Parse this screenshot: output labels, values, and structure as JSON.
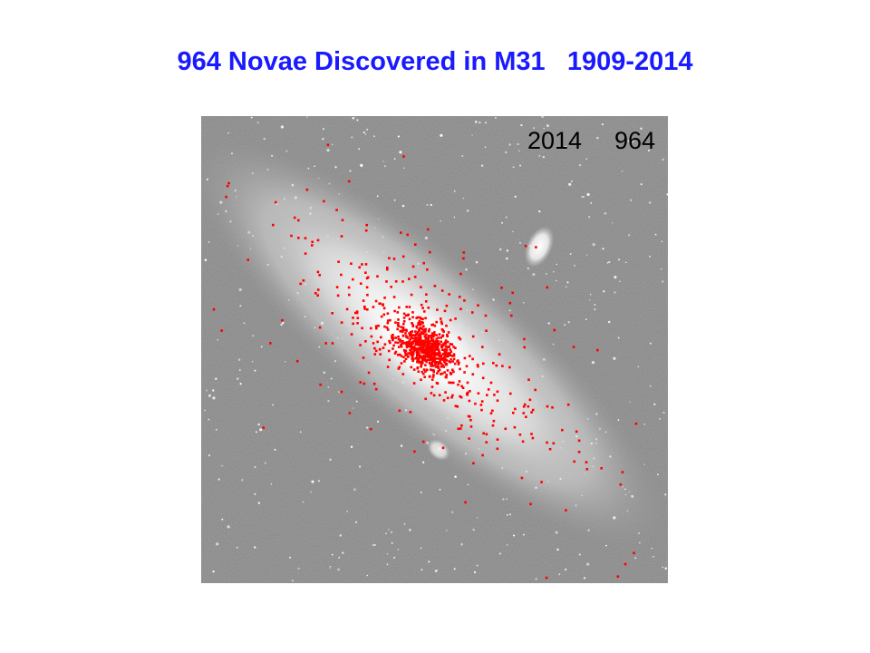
{
  "slide": {
    "title": "964 Novae Discovered in M31   1909-2014"
  },
  "image": {
    "subject": "Andromeda galaxy M31 with nova positions marked",
    "overlay": {
      "year": "2014",
      "count": "964"
    },
    "marker_color": "#ff0000",
    "title_color": "#1a1aff"
  }
}
